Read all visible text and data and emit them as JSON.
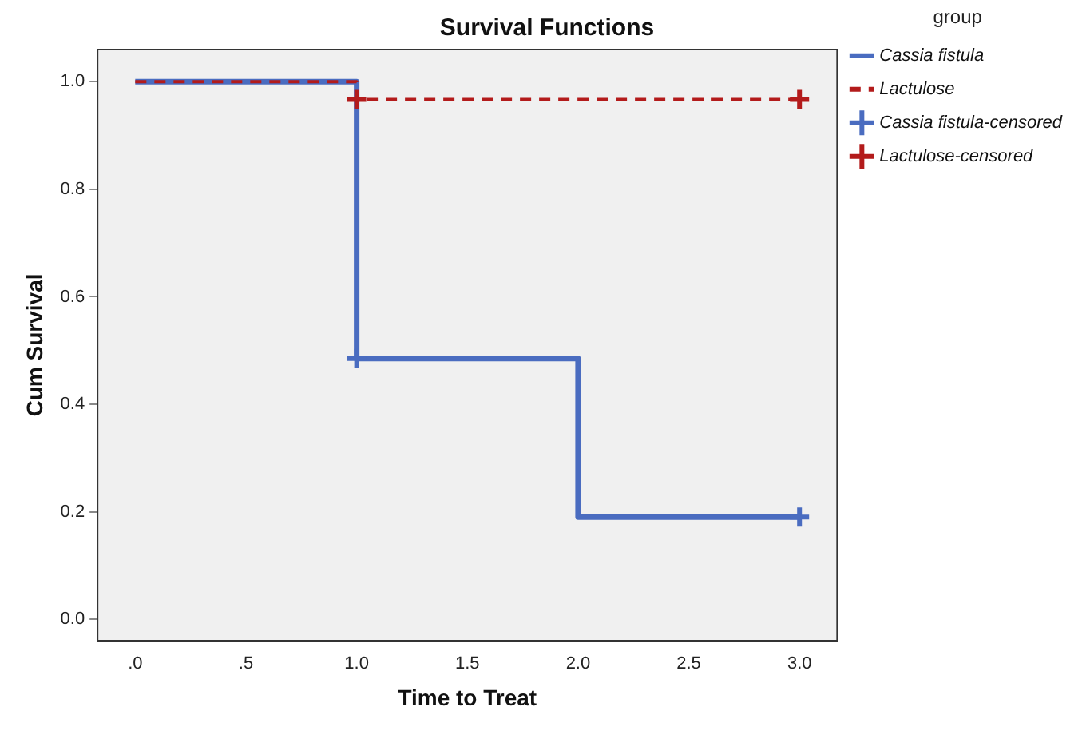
{
  "chart_data": {
    "type": "step",
    "title": "Survival Functions",
    "xlabel": "Time to Treat",
    "ylabel": "Cum Survival",
    "legend_title": "group",
    "legend": "right",
    "grid": false,
    "xlim": [
      -0.17,
      3.17
    ],
    "ylim": [
      -0.04,
      1.06
    ],
    "xticks": [
      {
        "value": 0,
        "label": ".0"
      },
      {
        "value": 0.5,
        "label": ".5"
      },
      {
        "value": 1,
        "label": "1.0"
      },
      {
        "value": 1.5,
        "label": "1.5"
      },
      {
        "value": 2,
        "label": "2.0"
      },
      {
        "value": 2.5,
        "label": "2.5"
      },
      {
        "value": 3,
        "label": "3.0"
      }
    ],
    "yticks": [
      {
        "value": 0,
        "label": "0.0"
      },
      {
        "value": 0.2,
        "label": "0.2"
      },
      {
        "value": 0.4,
        "label": "0.4"
      },
      {
        "value": 0.6,
        "label": "0.6"
      },
      {
        "value": 0.8,
        "label": "0.8"
      },
      {
        "value": 1,
        "label": "1.0"
      }
    ],
    "series": [
      {
        "name": "Cassia fistula",
        "color": "#4a6cc0",
        "line_style": "solid",
        "marker": "none",
        "x": [
          0,
          1,
          2,
          3
        ],
        "values": [
          1,
          0.485,
          0.19,
          0.19
        ]
      },
      {
        "name": "Lactulose",
        "color": "#b31b1b",
        "line_style": "dashed",
        "marker": "none",
        "x": [
          0,
          1,
          3
        ],
        "values": [
          1,
          0.967,
          0.967
        ]
      },
      {
        "name": "Cassia fistula-censored",
        "type": "scatter",
        "color": "#4a6cc0",
        "marker": "cross",
        "x": [
          1,
          3
        ],
        "values": [
          0.485,
          0.19
        ]
      },
      {
        "name": "Lactulose-censored",
        "type": "scatter",
        "color": "#b31b1b",
        "marker": "cross",
        "x": [
          1,
          3
        ],
        "values": [
          0.967,
          0.967
        ]
      }
    ]
  }
}
